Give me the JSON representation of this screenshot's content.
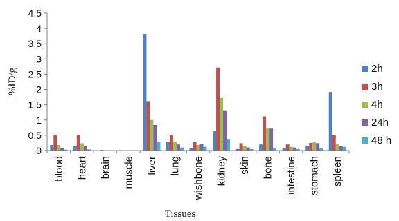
{
  "chart_data": {
    "type": "bar",
    "title": "",
    "xlabel": "Tissues",
    "ylabel": "%ID/g",
    "ylim": [
      0,
      4.5
    ],
    "yticks": [
      "0",
      "0.5",
      "1",
      "1.5",
      "2",
      "2.5",
      "3",
      "3.5",
      "4",
      "4.5"
    ],
    "grid": false,
    "legend_position": "right",
    "categories": [
      "blood",
      "heart",
      "brain",
      "muscle",
      "liver",
      "lung",
      "wishbone",
      "kidney",
      "skin",
      "bone",
      "intestine",
      "stomach",
      "spleen"
    ],
    "series": [
      {
        "name": "2h",
        "color": "#4f81bd",
        "values": [
          0.18,
          0.16,
          0.01,
          0.0,
          3.82,
          0.28,
          0.08,
          0.65,
          0.05,
          0.2,
          0.08,
          0.15,
          1.92
        ]
      },
      {
        "name": "3h",
        "color": "#c0504d",
        "values": [
          0.52,
          0.5,
          0.02,
          0.0,
          1.62,
          0.52,
          0.28,
          2.72,
          0.24,
          1.12,
          0.2,
          0.25,
          0.5
        ]
      },
      {
        "name": "4h",
        "color": "#9bbb59",
        "values": [
          0.18,
          0.24,
          0.01,
          0.0,
          1.0,
          0.3,
          0.18,
          1.72,
          0.15,
          0.72,
          0.12,
          0.28,
          0.22
        ]
      },
      {
        "name": "24h",
        "color": "#8064a2",
        "values": [
          0.08,
          0.14,
          0.0,
          0.0,
          0.84,
          0.2,
          0.22,
          1.32,
          0.1,
          0.72,
          0.1,
          0.24,
          0.14
        ]
      },
      {
        "name": "48 h",
        "color": "#4bacc6",
        "values": [
          0.03,
          0.04,
          0.0,
          0.0,
          0.28,
          0.1,
          0.12,
          0.38,
          0.05,
          0.08,
          0.05,
          0.08,
          0.12
        ]
      }
    ]
  }
}
